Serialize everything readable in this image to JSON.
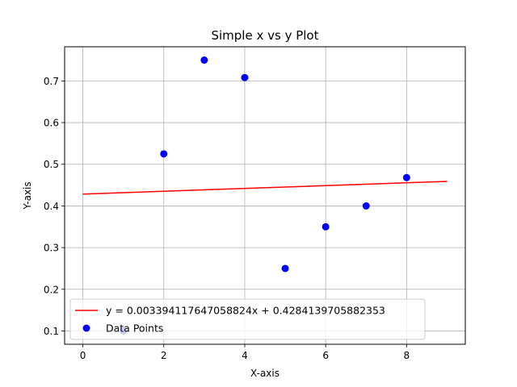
{
  "chart_data": {
    "type": "scatter",
    "title": "Simple x vs y Plot",
    "xlabel": "X-axis",
    "ylabel": "Y-axis",
    "xlim": [
      -0.45,
      9.45
    ],
    "ylim": [
      0.068,
      0.782
    ],
    "grid": true,
    "legend_position": "lower left",
    "x_ticks": [
      0,
      2,
      4,
      6,
      8
    ],
    "y_ticks": [
      0.1,
      0.2,
      0.3,
      0.4,
      0.5,
      0.6,
      0.7
    ],
    "x_tick_labels": [
      "0",
      "2",
      "4",
      "6",
      "8"
    ],
    "y_tick_labels": [
      "0.1",
      "0.2",
      "0.3",
      "0.4",
      "0.5",
      "0.6",
      "0.7"
    ],
    "series": [
      {
        "name": "y = 0.003394117647058824x + 0.4284139705882353",
        "type": "line",
        "color": "#ff0000",
        "slope": 0.003394117647058824,
        "intercept": 0.4284139705882353,
        "x": [
          0,
          9
        ],
        "y": [
          0.4284139705882353,
          0.4589610294117647
        ]
      },
      {
        "name": "Data Points",
        "type": "scatter",
        "color": "#0000ff",
        "x": [
          1,
          2,
          3,
          4,
          5,
          6,
          7,
          8
        ],
        "y": [
          0.1,
          0.525,
          0.75,
          0.708,
          0.25,
          0.35,
          0.4,
          0.468
        ]
      }
    ]
  }
}
